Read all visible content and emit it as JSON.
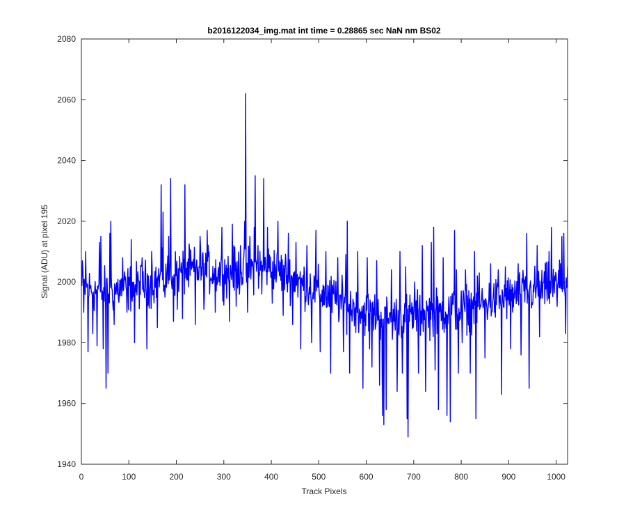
{
  "chart_data": {
    "type": "line",
    "title": "b2016122034_img.mat int time = 0.28865 sec  NaN nm BS02",
    "xlabel": "Track Pixels",
    "ylabel": "Signal (ADU) at pixel 195",
    "xlim": [
      0,
      1024
    ],
    "ylim": [
      1940,
      2080
    ],
    "xticks": [
      0,
      100,
      200,
      300,
      400,
      500,
      600,
      700,
      800,
      900,
      1000
    ],
    "yticks": [
      1940,
      1960,
      1980,
      2000,
      2020,
      2040,
      2060,
      2080
    ],
    "grid": false,
    "line_color": "#0000ff",
    "series": [
      {
        "x_start": 1,
        "x_end": 1024,
        "baseline": [
          [
            1,
            1998
          ],
          [
            50,
            1997
          ],
          [
            100,
            1998
          ],
          [
            150,
            2000
          ],
          [
            200,
            2003
          ],
          [
            250,
            2004
          ],
          [
            300,
            2003
          ],
          [
            350,
            2004
          ],
          [
            400,
            2005
          ],
          [
            450,
            2001
          ],
          [
            500,
            1997
          ],
          [
            550,
            1993
          ],
          [
            600,
            1990
          ],
          [
            650,
            1988
          ],
          [
            700,
            1989
          ],
          [
            750,
            1990
          ],
          [
            800,
            1991
          ],
          [
            850,
            1993
          ],
          [
            900,
            1995
          ],
          [
            950,
            1997
          ],
          [
            1000,
            1999
          ],
          [
            1024,
            2000
          ]
        ],
        "spikes": [
          [
            2,
            2007
          ],
          [
            5,
            1990
          ],
          [
            9,
            2010
          ],
          [
            14,
            1977
          ],
          [
            24,
            1983
          ],
          [
            33,
            1979
          ],
          [
            38,
            2013
          ],
          [
            41,
            2015
          ],
          [
            46,
            1978
          ],
          [
            52,
            1965
          ],
          [
            56,
            1970
          ],
          [
            60,
            2016
          ],
          [
            62,
            2020
          ],
          [
            69,
            1986
          ],
          [
            87,
            2008
          ],
          [
            96,
            1990
          ],
          [
            105,
            2014
          ],
          [
            112,
            1980
          ],
          [
            128,
            2008
          ],
          [
            138,
            1978
          ],
          [
            148,
            2010
          ],
          [
            160,
            1985
          ],
          [
            168,
            2032
          ],
          [
            172,
            2023
          ],
          [
            176,
            1995
          ],
          [
            184,
            2015
          ],
          [
            188,
            2034
          ],
          [
            194,
            1987
          ],
          [
            202,
            1991
          ],
          [
            213,
            1988
          ],
          [
            218,
            2032
          ],
          [
            228,
            2010
          ],
          [
            240,
            1986
          ],
          [
            250,
            2015
          ],
          [
            258,
            1991
          ],
          [
            265,
            2017
          ],
          [
            282,
            1990
          ],
          [
            296,
            2018
          ],
          [
            312,
            1987
          ],
          [
            318,
            2019
          ],
          [
            326,
            1992
          ],
          [
            335,
            2012
          ],
          [
            344,
            2020
          ],
          [
            346,
            2062
          ],
          [
            350,
            1990
          ],
          [
            355,
            2015
          ],
          [
            364,
            2018
          ],
          [
            366,
            2035
          ],
          [
            372,
            2012
          ],
          [
            380,
            1996
          ],
          [
            384,
            2034
          ],
          [
            392,
            2018
          ],
          [
            402,
            1993
          ],
          [
            414,
            2020
          ],
          [
            425,
            1989
          ],
          [
            436,
            2016
          ],
          [
            445,
            1986
          ],
          [
            452,
            2013
          ],
          [
            462,
            1978
          ],
          [
            475,
            2012
          ],
          [
            485,
            1980
          ],
          [
            494,
            2017
          ],
          [
            503,
            1977
          ],
          [
            515,
            2010
          ],
          [
            525,
            1970
          ],
          [
            540,
            2008
          ],
          [
            552,
            1977
          ],
          [
            557,
            2009
          ],
          [
            560,
            2020
          ],
          [
            565,
            1970
          ],
          [
            582,
            2010
          ],
          [
            593,
            1965
          ],
          [
            602,
            2008
          ],
          [
            607,
            1978
          ],
          [
            612,
            1972
          ],
          [
            622,
            2007
          ],
          [
            628,
            1966
          ],
          [
            634,
            1956
          ],
          [
            637,
            1953
          ],
          [
            642,
            1958
          ],
          [
            653,
            2004
          ],
          [
            665,
            1964
          ],
          [
            671,
            2010
          ],
          [
            676,
            1970
          ],
          [
            683,
            2005
          ],
          [
            686,
            1955
          ],
          [
            688,
            1949
          ],
          [
            702,
            2000
          ],
          [
            710,
            1970
          ],
          [
            718,
            2012
          ],
          [
            725,
            1964
          ],
          [
            737,
            2013
          ],
          [
            742,
            2018
          ],
          [
            745,
            1971
          ],
          [
            752,
            1958
          ],
          [
            762,
            2008
          ],
          [
            770,
            1956
          ],
          [
            777,
            1954
          ],
          [
            786,
            2017
          ],
          [
            790,
            2004
          ],
          [
            794,
            1970
          ],
          [
            802,
            1980
          ],
          [
            809,
            2004
          ],
          [
            819,
            1970
          ],
          [
            828,
            2010
          ],
          [
            831,
            1955
          ],
          [
            838,
            2003
          ],
          [
            850,
            1975
          ],
          [
            862,
            2006
          ],
          [
            878,
            2004
          ],
          [
            885,
            1963
          ],
          [
            893,
            2005
          ],
          [
            904,
            1978
          ],
          [
            920,
            2006
          ],
          [
            926,
            1976
          ],
          [
            938,
            2016
          ],
          [
            943,
            1965
          ],
          [
            960,
            2012
          ],
          [
            965,
            1982
          ],
          [
            985,
            2010
          ],
          [
            990,
            2018
          ],
          [
            1002,
            1992
          ],
          [
            1009,
            2006
          ],
          [
            1012,
            2015
          ],
          [
            1016,
            2016
          ],
          [
            1020,
            1983
          ],
          [
            1024,
            2005
          ]
        ],
        "noise_amplitude": 7
      }
    ]
  }
}
